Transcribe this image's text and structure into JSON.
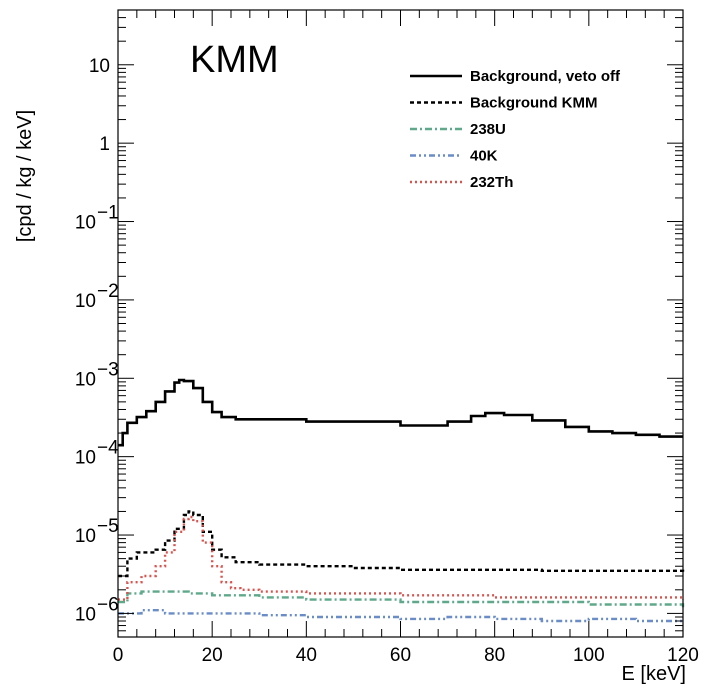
{
  "chart_data": {
    "type": "line",
    "tag": "KMM",
    "xlabel": "E [keV]",
    "ylabel": "[cpd / kg / keV]",
    "xlim": [
      0,
      120
    ],
    "ylim": [
      5e-07,
      50
    ],
    "yscale": "log",
    "grid": false,
    "legend_position": "top-right",
    "xticks": [
      "0",
      "20",
      "40",
      "60",
      "80",
      "100",
      "120"
    ],
    "yticks": [
      {
        "value": 1e-06,
        "base": "10",
        "exp": "−6"
      },
      {
        "value": 1e-05,
        "base": "10",
        "exp": "−5"
      },
      {
        "value": 0.0001,
        "base": "10",
        "exp": "−4"
      },
      {
        "value": 0.001,
        "base": "10",
        "exp": "−3"
      },
      {
        "value": 0.01,
        "base": "10",
        "exp": "−2"
      },
      {
        "value": 0.1,
        "base": "10",
        "exp": "−1"
      },
      {
        "value": 1,
        "base": "1",
        "exp": ""
      },
      {
        "value": 10,
        "base": "10",
        "exp": ""
      }
    ],
    "series": [
      {
        "name": "Background, veto off",
        "color": "#000000",
        "style": "solid",
        "x": [
          0,
          1,
          2,
          4,
          6,
          8,
          10,
          12,
          13,
          14,
          16,
          18,
          20,
          22,
          25,
          30,
          40,
          50,
          60,
          65,
          70,
          75,
          78,
          82,
          88,
          95,
          100,
          105,
          110,
          115,
          120
        ],
        "y": [
          0.00014,
          0.0002,
          0.00027,
          0.00032,
          0.00038,
          0.0005,
          0.00068,
          0.00088,
          0.00095,
          0.00092,
          0.00075,
          0.0005,
          0.00037,
          0.00032,
          0.0003,
          0.0003,
          0.00028,
          0.00028,
          0.00025,
          0.00025,
          0.00028,
          0.00033,
          0.00036,
          0.00034,
          0.00029,
          0.00024,
          0.00021,
          0.0002,
          0.00019,
          0.00018,
          0.00018
        ]
      },
      {
        "name": "Background KMM",
        "color": "#000000",
        "style": "dashed",
        "x": [
          0,
          2,
          4,
          6,
          8,
          10,
          12,
          14,
          15,
          16,
          18,
          20,
          22,
          25,
          30,
          40,
          50,
          60,
          70,
          80,
          90,
          100,
          110,
          120
        ],
        "y": [
          3e-06,
          5e-06,
          6e-06,
          6e-06,
          6.5e-06,
          8.5e-06,
          1.2e-05,
          1.8e-05,
          2e-05,
          1.8e-05,
          1.1e-05,
          6.5e-06,
          5.2e-06,
          4.5e-06,
          4.2e-06,
          4e-06,
          3.8e-06,
          3.6e-06,
          3.6e-06,
          3.6e-06,
          3.5e-06,
          3.5e-06,
          3.5e-06,
          3.4e-06
        ]
      },
      {
        "name": "238U",
        "color": "#5fa88a",
        "style": "dashdot",
        "x": [
          0,
          2,
          5,
          10,
          15,
          20,
          30,
          40,
          60,
          80,
          100,
          120
        ],
        "y": [
          1.4e-06,
          1.8e-06,
          1.9e-06,
          1.9e-06,
          1.8e-06,
          1.7e-06,
          1.6e-06,
          1.5e-06,
          1.4e-06,
          1.4e-06,
          1.3e-06,
          1.2e-06
        ]
      },
      {
        "name": "40K",
        "color": "#6a8cc7",
        "style": "dashdotdot",
        "x": [
          0,
          5,
          10,
          20,
          30,
          40,
          50,
          60,
          70,
          80,
          90,
          100,
          110,
          120
        ],
        "y": [
          1e-06,
          1.1e-06,
          1e-06,
          1e-06,
          9.5e-07,
          9e-07,
          9e-07,
          8.5e-07,
          9e-07,
          8.5e-07,
          8e-07,
          8.5e-07,
          8e-07,
          8e-07
        ]
      },
      {
        "name": "232Th",
        "color": "#d9534f",
        "style": "dotted",
        "x": [
          0,
          2,
          5,
          8,
          10,
          12,
          14,
          15,
          16,
          18,
          20,
          22,
          24,
          26,
          30,
          40,
          60,
          80,
          100,
          120
        ],
        "y": [
          1.5e-06,
          2.5e-06,
          3e-06,
          4e-06,
          6e-06,
          1.1e-05,
          1.6e-05,
          1.7e-05,
          1.5e-05,
          8e-06,
          4e-06,
          2.5e-06,
          2.1e-06,
          2e-06,
          1.9e-06,
          1.8e-06,
          1.7e-06,
          1.6e-06,
          1.6e-06,
          1.5e-06
        ]
      }
    ]
  }
}
